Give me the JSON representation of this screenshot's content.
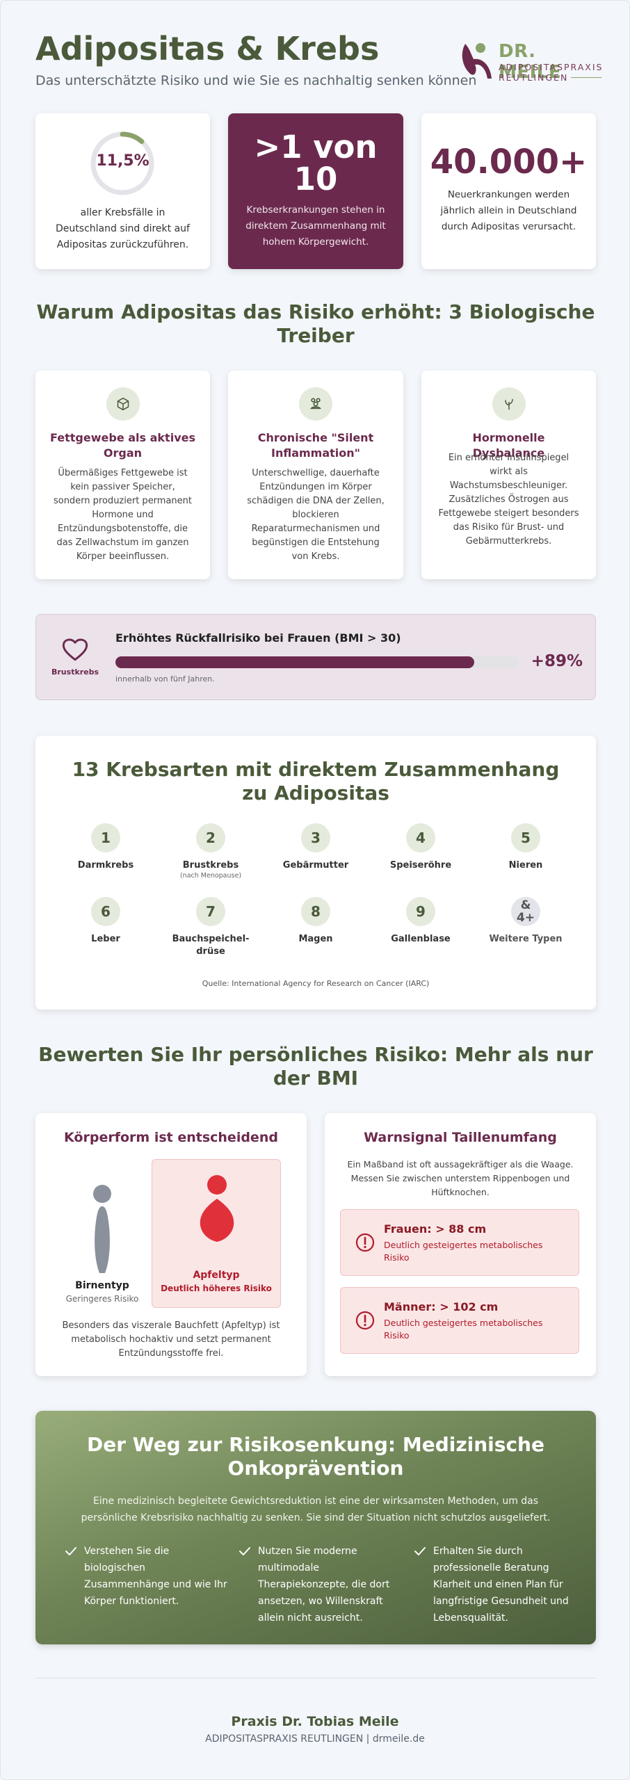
{
  "header": {
    "title": "Adipositas & Krebs",
    "subtitle": "Das unterschätzte Risiko und wie Sie es nachhaltig senken können",
    "logo_name": "DR. MEILE",
    "logo_line1": "ADIPOSITASPRAXIS",
    "logo_line2": "REUTLINGEN"
  },
  "stats": [
    {
      "value": "11,5%",
      "fraction": 0.115,
      "text": "aller Krebsfälle in Deutschland sind direkt auf Adipositas zurückzuführen."
    },
    {
      "value_line1": ">1 von",
      "value_line2": "10",
      "text": "Krebserkrankungen stehen in direktem Zusammenhang mit hohem Körpergewicht."
    },
    {
      "value": "40.000+",
      "text": "Neuerkrankungen werden jährlich allein in Deutschland durch Adipositas verursacht."
    }
  ],
  "drivers": {
    "title": "Warum Adipositas das Risiko erhöht: 3 Biologische Treiber",
    "items": [
      {
        "icon": "cube-icon",
        "title": "Fettgewebe als aktives Organ",
        "text": "Übermäßiges Fettgewebe ist kein passiver Speicher, sondern produziert permanent Hormone und Entzündungsbotenstoffe, die das Zellwachstum im ganzen Körper beeinflussen."
      },
      {
        "icon": "cells-icon",
        "title": "Chronische \"Silent Inflammation\"",
        "text": "Unterschwellige, dauerhafte Entzündungen im Körper schädigen die DNA der Zellen, blockieren Reparaturmechanismen und begünstigen die Entstehung von Krebs."
      },
      {
        "icon": "sprout-icon",
        "title": "Hormonelle Dysbalance",
        "text": "Ein erhöhter Insulinspiegel wirkt als Wachstumsbeschleuniger. Zusätzliches Östrogen aus Fettgewebe steigert besonders das Risiko für Brust- und Gebärmutterkrebs."
      }
    ]
  },
  "breast": {
    "label": "Brustkrebs",
    "title": "Erhöhtes Rückfallrisiko bei Frauen (BMI > 30)",
    "value": "+89%",
    "fill_fraction": 0.89,
    "note": "innerhalb von fünf Jahren."
  },
  "cancer_types": {
    "title": "13 Krebsarten mit direktem Zusammenhang zu Adipositas",
    "items": [
      {
        "num": "1",
        "name": "Darmkrebs",
        "note": ""
      },
      {
        "num": "2",
        "name": "Brustkrebs",
        "note": "(nach Menopause)"
      },
      {
        "num": "3",
        "name": "Gebärmutter",
        "note": ""
      },
      {
        "num": "4",
        "name": "Speiseröhre",
        "note": ""
      },
      {
        "num": "5",
        "name": "Nieren",
        "note": ""
      },
      {
        "num": "6",
        "name": "Leber",
        "note": ""
      },
      {
        "num": "7",
        "name": "Bauchspeichel-\ndrüse",
        "note": ""
      },
      {
        "num": "8",
        "name": "Magen",
        "note": ""
      },
      {
        "num": "9",
        "name": "Gallenblase",
        "note": ""
      },
      {
        "num": "&\n4+",
        "name": "Weitere Typen",
        "note": ""
      }
    ],
    "source": "Quelle: International Agency for Research on Cancer (IARC)"
  },
  "risk": {
    "title": "Bewerten Sie Ihr persönliches Risiko: Mehr als nur der BMI",
    "body_shape": {
      "title": "Körperform ist entscheidend",
      "pear_label": "Birnentyp",
      "pear_sub": "Geringeres Risiko",
      "apple_label": "Apfeltyp",
      "apple_sub": "Deutlich höheres Risiko",
      "text": "Besonders das viszerale Bauchfett (Apfeltyp) ist metabolisch hochaktiv und setzt permanent Entzündungsstoffe frei."
    },
    "waist": {
      "title": "Warnsignal Taillenumfang",
      "text": "Ein Maßband ist oft aussagekräftiger als die Waage. Messen Sie zwischen unterstem Rippenbogen und Hüftknochen.",
      "warnings": [
        {
          "title": "Frauen: > 88 cm",
          "text": "Deutlich gesteigertes metabolisches Risiko"
        },
        {
          "title": "Männer: > 102 cm",
          "text": "Deutlich gesteigertes metabolisches Risiko"
        }
      ]
    }
  },
  "prevention": {
    "title": "Der Weg zur Risikosenkung: Medizinische Onkoprävention",
    "text": "Eine medizinisch begleitete Gewichtsreduktion ist eine der wirksamsten Methoden, um das persönliche Krebsrisiko nachhaltig zu senken. Sie sind der Situation nicht schutzlos ausgeliefert.",
    "items": [
      "Verstehen Sie die biologischen Zusammenhänge und wie Ihr Körper funktioniert.",
      "Nutzen Sie moderne multimodale Therapiekonzepte, die dort ansetzen, wo Willenskraft allein nicht ausreicht.",
      "Erhalten Sie durch professionelle Beratung Klarheit und einen Plan für langfristige Gesundheit und Lebensqualität."
    ]
  },
  "footer": {
    "name": "Praxis Dr. Tobias Meile",
    "sub": "ADIPOSITASPRAXIS REUTLINGEN | drmeile.de"
  },
  "colors": {
    "plum": "#6b2a4d",
    "olive": "#4a5a3a",
    "sage": "#8aa26a",
    "danger": "#e0303a",
    "pear_gray": "#8a919c"
  }
}
